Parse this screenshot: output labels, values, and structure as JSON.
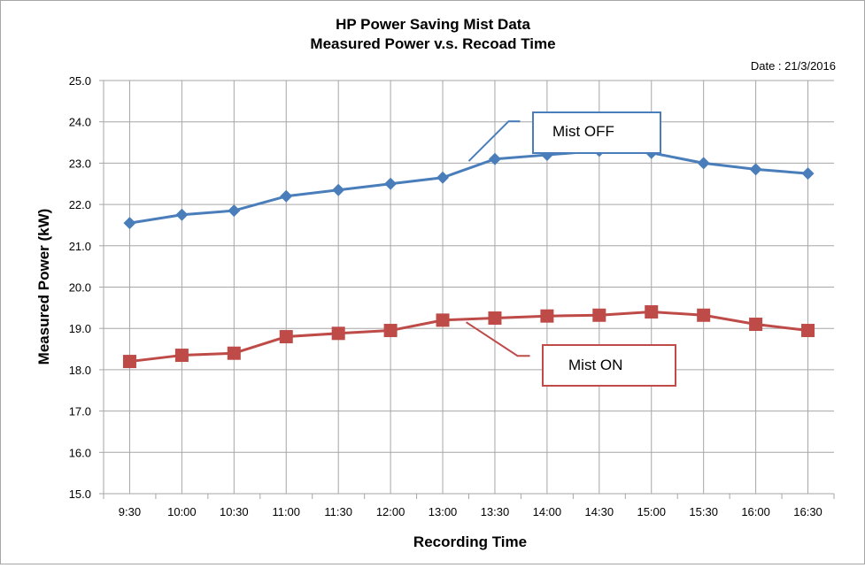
{
  "chart_data": {
    "type": "line",
    "title": "HP Power Saving Mist Data",
    "subtitle": "Measured Power v.s. Recoad Time",
    "date_note": "Date : 21/3/2016",
    "xlabel": "Recording Time",
    "ylabel": "Measured Power (kW)",
    "categories": [
      "9:30",
      "10:00",
      "10:30",
      "11:00",
      "11:30",
      "12:00",
      "13:00",
      "13:30",
      "14:00",
      "14:30",
      "15:00",
      "15:30",
      "16:00",
      "16:30"
    ],
    "ylim": [
      15.0,
      25.0
    ],
    "yticks": [
      "15.0",
      "16.0",
      "17.0",
      "18.0",
      "19.0",
      "20.0",
      "21.0",
      "22.0",
      "23.0",
      "24.0",
      "25.0"
    ],
    "grid": true,
    "legend": "none",
    "series": [
      {
        "name": "Mist OFF",
        "color": "#4a7ebb",
        "marker": "diamond",
        "values": [
          21.55,
          21.75,
          21.85,
          22.2,
          22.35,
          22.5,
          22.65,
          23.1,
          23.2,
          23.3,
          23.25,
          23.0,
          22.85,
          22.75
        ]
      },
      {
        "name": "Mist ON",
        "color": "#be4b48",
        "marker": "square",
        "values": [
          18.2,
          18.35,
          18.4,
          18.8,
          18.88,
          18.95,
          19.2,
          19.25,
          19.3,
          19.32,
          19.4,
          19.32,
          19.1,
          18.95
        ]
      }
    ],
    "annotations": [
      {
        "text": "Mist OFF",
        "series": 0,
        "color": "#4a7ebb"
      },
      {
        "text": "Mist ON",
        "series": 1,
        "color": "#be4b48"
      }
    ]
  }
}
